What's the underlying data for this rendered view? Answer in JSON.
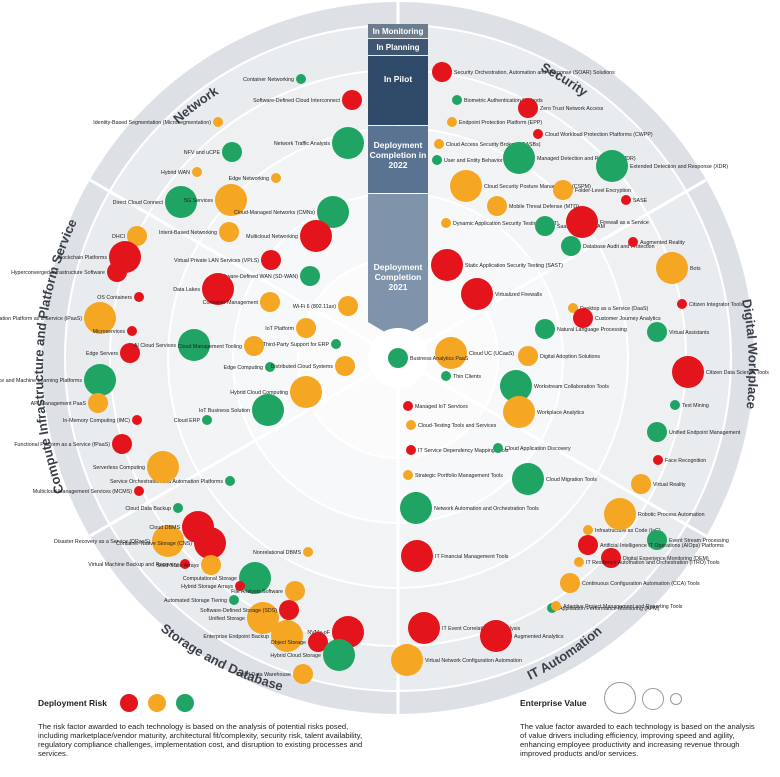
{
  "colors": {
    "red": "#e3141b",
    "orange": "#f5a623",
    "green": "#1fa463"
  },
  "sectors": [
    "Network",
    "Security",
    "Digital Workplace",
    "IT Automation",
    "Storage and Database",
    "Compute Infrastructure and Platform Services"
  ],
  "rings": {
    "monitoring": "In Monitoring",
    "planning": "In Planning",
    "pilot": "In Pilot",
    "deploy2022": "Deployment Completion in 2022",
    "deploy2021": "Deployment Completion 2021"
  },
  "legend": {
    "risk_title": "Deployment Risk",
    "risk_text": "The risk factor awarded to each technology is based on the analysis of potential risks posed, including marketplace/vendor maturity, architectural fit/complexity, security risk, talent availability, regulatory compliance challenges, implementation cost, and disruption to existing processes and services.",
    "value_title": "Enterprise Value",
    "value_text": "The value factor awarded to each technology is based on the analysis of value drivers including efficiency, improving speed and agility, enhancing employee productivity and increasing revenue through improved products and/or services."
  },
  "items": [
    {
      "label": "Container Networking",
      "color": "green",
      "size": "s"
    },
    {
      "label": "Software-Defined Cloud Interconnect",
      "color": "red",
      "size": "m"
    },
    {
      "label": "Identity-Based Segmentation (Microsegmentation)",
      "color": "orange",
      "size": "s"
    },
    {
      "label": "Network Traffic Analysis",
      "color": "green",
      "size": "l"
    },
    {
      "label": "NFV and uCPE",
      "color": "green",
      "size": "m"
    },
    {
      "label": "Hybrid WAN",
      "color": "orange",
      "size": "s"
    },
    {
      "label": "Edge Networking",
      "color": "orange",
      "size": "s"
    },
    {
      "label": "Direct Cloud Connect",
      "color": "green",
      "size": "l"
    },
    {
      "label": "5G Services",
      "color": "orange",
      "size": "l"
    },
    {
      "label": "Cloud-Managed Networks (CMNs)",
      "color": "green",
      "size": "l"
    },
    {
      "label": "Intent-Based Networking",
      "color": "orange",
      "size": "m"
    },
    {
      "label": "Multicloud Networking",
      "color": "red",
      "size": "l"
    },
    {
      "label": "Virtual Private LAN Services (VPLS)",
      "color": "red",
      "size": "m"
    },
    {
      "label": "Software-Defined WAN (SD-WAN)",
      "color": "green",
      "size": "m"
    },
    {
      "label": "Wi-Fi 6 (802.11ax)",
      "color": "orange",
      "size": "m"
    },
    {
      "label": "Security Orchestration, Automation and Response (SOAR) Solutions",
      "color": "red",
      "size": "m"
    },
    {
      "label": "Biometric Authentication Methods",
      "color": "green",
      "size": "s"
    },
    {
      "label": "Zero Trust Network Access",
      "color": "red",
      "size": "m"
    },
    {
      "label": "Endpoint Protection Platform (EPP)",
      "color": "orange",
      "size": "s"
    },
    {
      "label": "Cloud Workload Protection Platforms (CWPP)",
      "color": "red",
      "size": "s"
    },
    {
      "label": "Cloud Access Security Brokers (CASBs)",
      "color": "orange",
      "size": "s"
    },
    {
      "label": "User and Entity Behavior Analytics",
      "color": "green",
      "size": "s"
    },
    {
      "label": "Managed Detection and Response (MDR)",
      "color": "green",
      "size": "l"
    },
    {
      "label": "Extended Detection and Response (XDR)",
      "color": "green",
      "size": "l"
    },
    {
      "label": "Cloud Security Posture Management (CSPM)",
      "color": "orange",
      "size": "l"
    },
    {
      "label": "Folder-Level Encryption",
      "color": "orange",
      "size": "m"
    },
    {
      "label": "Mobile Threat Defense (MTD)",
      "color": "orange",
      "size": "m"
    },
    {
      "label": "SASE",
      "color": "red",
      "size": "s"
    },
    {
      "label": "Dynamic Application Security Testing (DAST)",
      "color": "orange",
      "size": "s"
    },
    {
      "label": "SaaS-Delivered IAM",
      "color": "green",
      "size": "m"
    },
    {
      "label": "Firewall as a Service",
      "color": "red",
      "size": "l"
    },
    {
      "label": "Database Audit and Protection",
      "color": "green",
      "size": "m"
    },
    {
      "label": "Static Application Security Testing (SAST)",
      "color": "red",
      "size": "l"
    },
    {
      "label": "Virtualized Firewalls",
      "color": "red",
      "size": "l"
    },
    {
      "label": "Augmented Reality",
      "color": "red",
      "size": "s"
    },
    {
      "label": "Bots",
      "color": "orange",
      "size": "l"
    },
    {
      "label": "Citizen Integrator Tools",
      "color": "red",
      "size": "s"
    },
    {
      "label": "Virtual Assistants",
      "color": "green",
      "size": "m"
    },
    {
      "label": "Desktop as a Service (DaaS)",
      "color": "orange",
      "size": "s"
    },
    {
      "label": "Customer Journey Analytics",
      "color": "red",
      "size": "m"
    },
    {
      "label": "Natural Language Processing",
      "color": "green",
      "size": "m"
    },
    {
      "label": "Citizen Data Science Tools",
      "color": "red",
      "size": "l"
    },
    {
      "label": "Cloud UC (UCaaS)",
      "color": "orange",
      "size": "l"
    },
    {
      "label": "Digital Adoption Solutions",
      "color": "orange",
      "size": "m"
    },
    {
      "label": "Text Mining",
      "color": "green",
      "size": "s"
    },
    {
      "label": "Thin Clients",
      "color": "green",
      "size": "s"
    },
    {
      "label": "Workstream Collaboration Tools",
      "color": "green",
      "size": "l"
    },
    {
      "label": "Unified Endpoint Management",
      "color": "green",
      "size": "m"
    },
    {
      "label": "Workplace Analytics",
      "color": "orange",
      "size": "l"
    },
    {
      "label": "Face Recognition",
      "color": "red",
      "size": "s"
    },
    {
      "label": "Virtual Reality",
      "color": "orange",
      "size": "m"
    },
    {
      "label": "Managed IoT Services",
      "color": "red",
      "size": "s"
    },
    {
      "label": "Cloud-Testing Tools and Services",
      "color": "orange",
      "size": "s"
    },
    {
      "label": "IT Service Dependency Mapping Tools",
      "color": "red",
      "size": "s"
    },
    {
      "label": "Cloud Application Discovery",
      "color": "green",
      "size": "s"
    },
    {
      "label": "Strategic Portfolio Management Tools",
      "color": "orange",
      "size": "s"
    },
    {
      "label": "Cloud Migration Tools",
      "color": "green",
      "size": "l"
    },
    {
      "label": "Network Automation and Orchestration Tools",
      "color": "green",
      "size": "l"
    },
    {
      "label": "Infrastructure as Code (IaC)",
      "color": "orange",
      "size": "s"
    },
    {
      "label": "Robotic Process Automation",
      "color": "orange",
      "size": "l"
    },
    {
      "label": "Event Stream Processing",
      "color": "green",
      "size": "m"
    },
    {
      "label": "Artificial Intelligence IT Operations (AIOps) Platforms",
      "color": "red",
      "size": "m"
    },
    {
      "label": "Digital Experience Monitoring (DEM)",
      "color": "red",
      "size": "m"
    },
    {
      "label": "IT Financial Management Tools",
      "color": "red",
      "size": "l"
    },
    {
      "label": "IT Resilience Automation and Orchestration (ITRO) Tools",
      "color": "orange",
      "size": "s"
    },
    {
      "label": "Continuous Configuration Automation (CCA) Tools",
      "color": "orange",
      "size": "m"
    },
    {
      "label": "Application Performance Monitoring (APM)",
      "color": "green",
      "size": "s"
    },
    {
      "label": "Adaptive Project Management and Reporting Tools",
      "color": "orange",
      "size": "s"
    },
    {
      "label": "IT Event Correlation and Analysis",
      "color": "red",
      "size": "l"
    },
    {
      "label": "Augmented Analytics",
      "color": "red",
      "size": "l"
    },
    {
      "label": "Virtual Network Configuration Automation",
      "color": "orange",
      "size": "l"
    },
    {
      "label": "Service Orchestration and Automation Platforms",
      "color": "green",
      "size": "s"
    },
    {
      "label": "Cloud Data Backup",
      "color": "green",
      "size": "s"
    },
    {
      "label": "Disaster Recovery as a Service (DRaaS)",
      "color": "orange",
      "size": "l"
    },
    {
      "label": "Cloud DBMS",
      "color": "red",
      "size": "l"
    },
    {
      "label": "Container-Native Storage (CNS)",
      "color": "red",
      "size": "l"
    },
    {
      "label": "Nonrelational DBMS",
      "color": "orange",
      "size": "s"
    },
    {
      "label": "Virtual Machine Backup and Recovery",
      "color": "red",
      "size": "s"
    },
    {
      "label": "Solid-State Arrays",
      "color": "orange",
      "size": "m"
    },
    {
      "label": "Computational Storage",
      "color": "green",
      "size": "l"
    },
    {
      "label": "Hybrid Storage Arrays",
      "color": "red",
      "size": "s"
    },
    {
      "label": "File Analysis Software",
      "color": "orange",
      "size": "m"
    },
    {
      "label": "Automated Storage Tiering",
      "color": "green",
      "size": "s"
    },
    {
      "label": "Unified Storage",
      "color": "orange",
      "size": "l"
    },
    {
      "label": "Software-Defined Storage (SDS)",
      "color": "red",
      "size": "m"
    },
    {
      "label": "NVMe-oF",
      "color": "red",
      "size": "l"
    },
    {
      "label": "Enterprise Endpoint Backup",
      "color": "orange",
      "size": "l"
    },
    {
      "label": "Object Storage",
      "color": "red",
      "size": "m"
    },
    {
      "label": "Hybrid Cloud Storage",
      "color": "green",
      "size": "l"
    },
    {
      "label": "Cloud Data Warehouse",
      "color": "orange",
      "size": "m"
    },
    {
      "label": "DHCI",
      "color": "orange",
      "size": "m"
    },
    {
      "label": "Blockchain Platforms",
      "color": "red",
      "size": "l"
    },
    {
      "label": "Hyperconverged Infrastructure Software",
      "color": "red",
      "size": "m"
    },
    {
      "label": "OS Containers",
      "color": "red",
      "size": "s"
    },
    {
      "label": "Integration Platform as a Service (iPaaS)",
      "color": "orange",
      "size": "l"
    },
    {
      "label": "Microservices",
      "color": "red",
      "size": "s"
    },
    {
      "label": "Edge Servers",
      "color": "red",
      "size": "m"
    },
    {
      "label": "Data Science and Machine Learning Platforms",
      "color": "green",
      "size": "l"
    },
    {
      "label": "API Management PaaS",
      "color": "orange",
      "size": "m"
    },
    {
      "label": "In-Memory Computing (IMC)",
      "color": "red",
      "size": "s"
    },
    {
      "label": "Functional Platform as a Service (fPaaS)",
      "color": "red",
      "size": "m"
    },
    {
      "label": "Serverless Computing",
      "color": "orange",
      "size": "l"
    },
    {
      "label": "Multicloud Management Services (MCMS)",
      "color": "red",
      "size": "s"
    },
    {
      "label": "Data Lakes",
      "color": "red",
      "size": "l"
    },
    {
      "label": "AI Cloud Services",
      "color": "green",
      "size": "l"
    },
    {
      "label": "Cloud ERP",
      "color": "green",
      "size": "s"
    },
    {
      "label": "Container Management",
      "color": "orange",
      "size": "m"
    },
    {
      "label": "IoT Platform",
      "color": "orange",
      "size": "m"
    },
    {
      "label": "Cloud Management Tooling",
      "color": "orange",
      "size": "m"
    },
    {
      "label": "Third-Party Support for ERP",
      "color": "green",
      "size": "s"
    },
    {
      "label": "Edge Computing",
      "color": "green",
      "size": "s"
    },
    {
      "label": "Distributed Cloud Systems",
      "color": "orange",
      "size": "m"
    },
    {
      "label": "Hybrid Cloud Computing",
      "color": "orange",
      "size": "l"
    },
    {
      "label": "IoT Business Solution",
      "color": "green",
      "size": "l"
    },
    {
      "label": "Business Analytics PaaS",
      "color": "green",
      "size": "m"
    }
  ]
}
